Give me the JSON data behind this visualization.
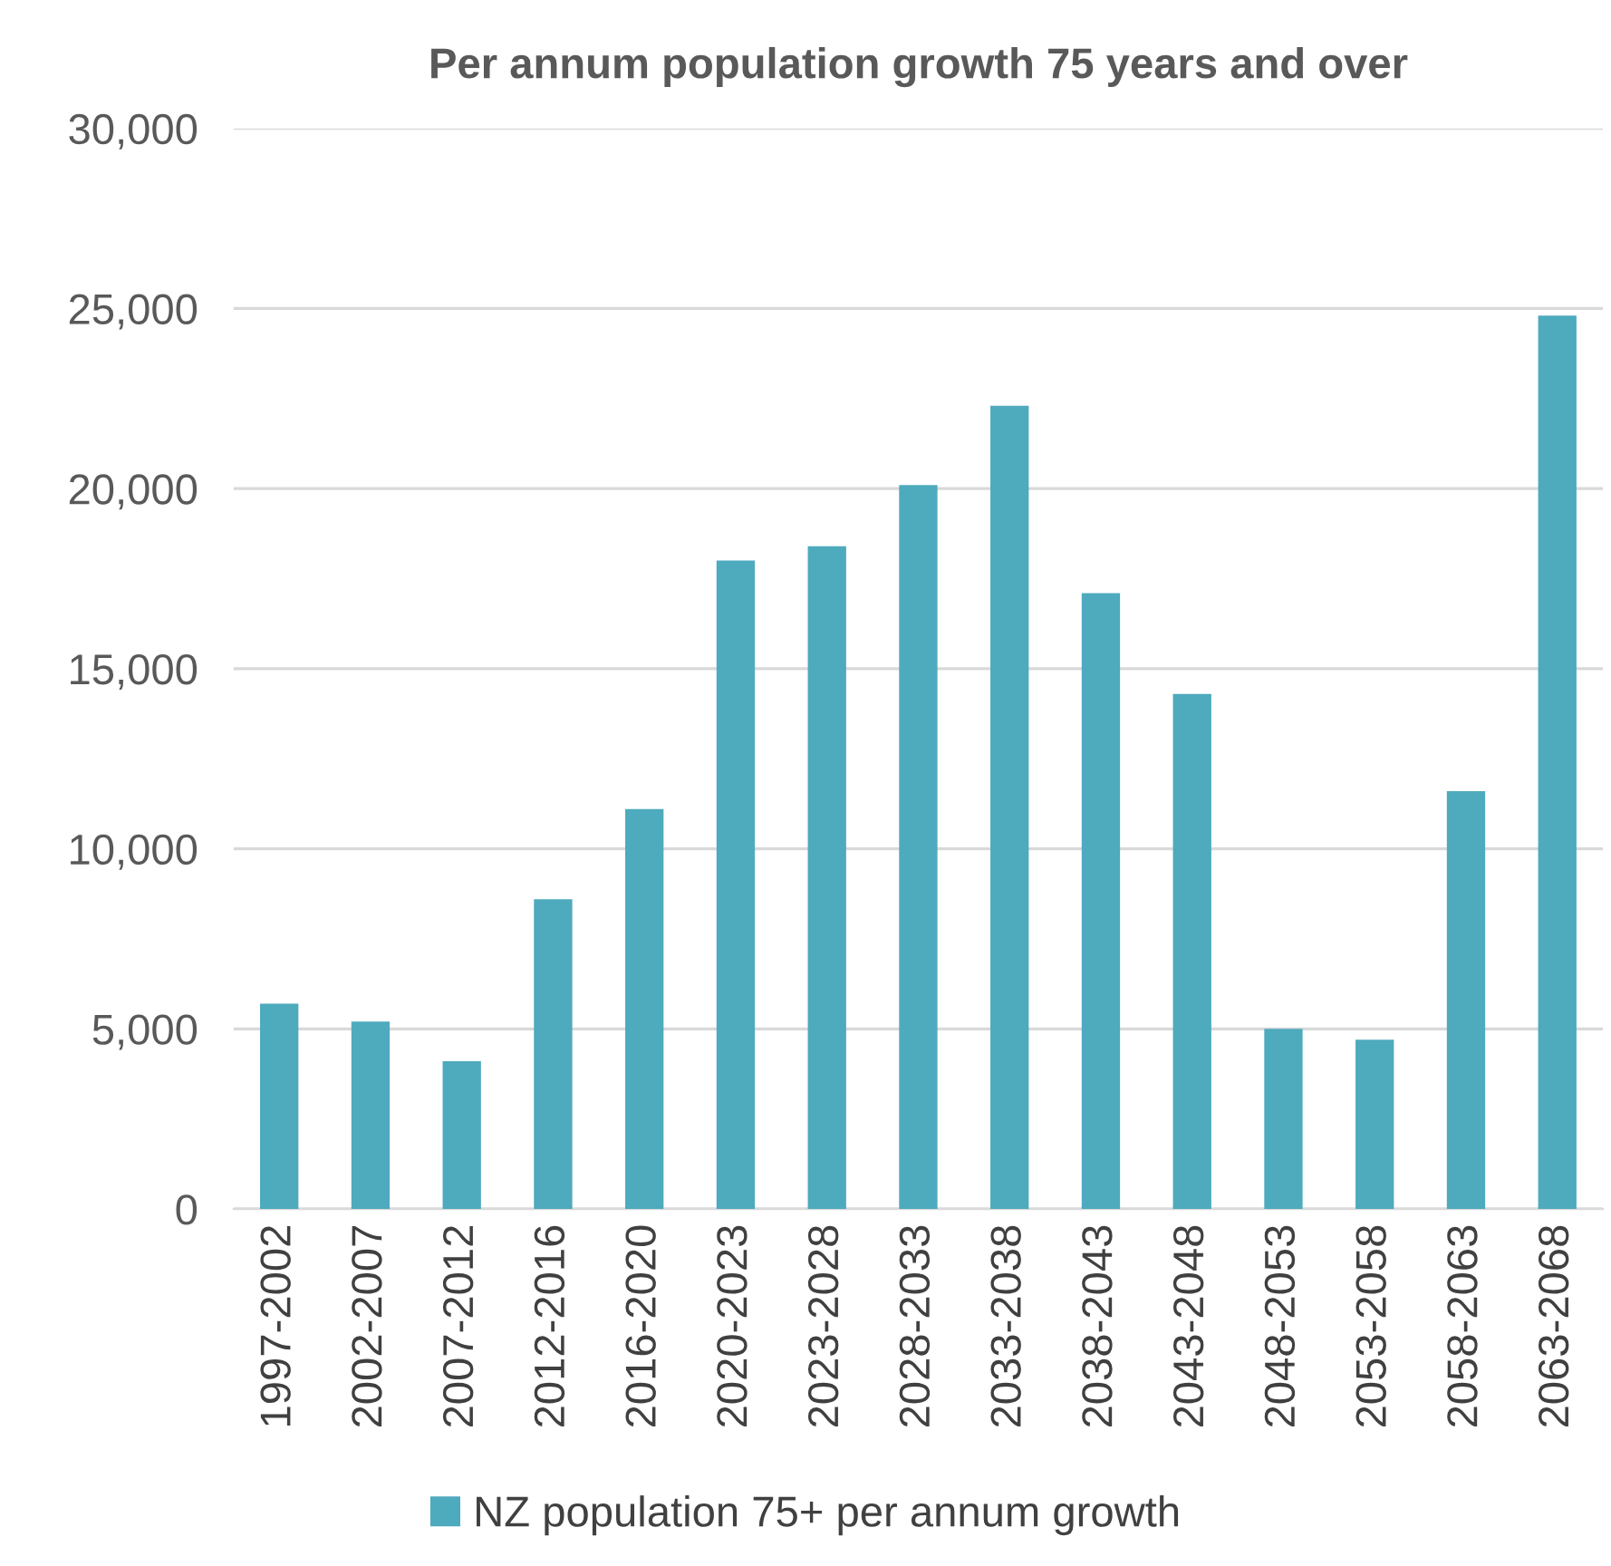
{
  "chart_data": {
    "type": "bar",
    "title": "Per annum population growth 75 years and over",
    "categories": [
      "1997-2002",
      "2002-2007",
      "2007-2012",
      "2012-2016",
      "2016-2020",
      "2020-2023",
      "2023-2028",
      "2028-2033",
      "2033-2038",
      "2038-2043",
      "2043-2048",
      "2048-2053",
      "2053-2058",
      "2058-2063",
      "2063-2068"
    ],
    "series": [
      {
        "name": "NZ population 75+ per annum growth",
        "color": "#4eaabd",
        "values": [
          5700,
          5200,
          4100,
          8600,
          11100,
          18000,
          18400,
          20100,
          22300,
          17100,
          14300,
          5000,
          4700,
          11600,
          24800
        ]
      }
    ],
    "ylim": [
      0,
      30000
    ],
    "yticks": [
      {
        "value": 0,
        "label": "0"
      },
      {
        "value": 5000,
        "label": "5,000"
      },
      {
        "value": 10000,
        "label": "10,000"
      },
      {
        "value": 15000,
        "label": "15,000"
      },
      {
        "value": 20000,
        "label": "20,000"
      },
      {
        "value": 25000,
        "label": "25,000"
      },
      {
        "value": 30000,
        "label": "30,000"
      }
    ],
    "grid": "y",
    "legend": "bottom"
  }
}
